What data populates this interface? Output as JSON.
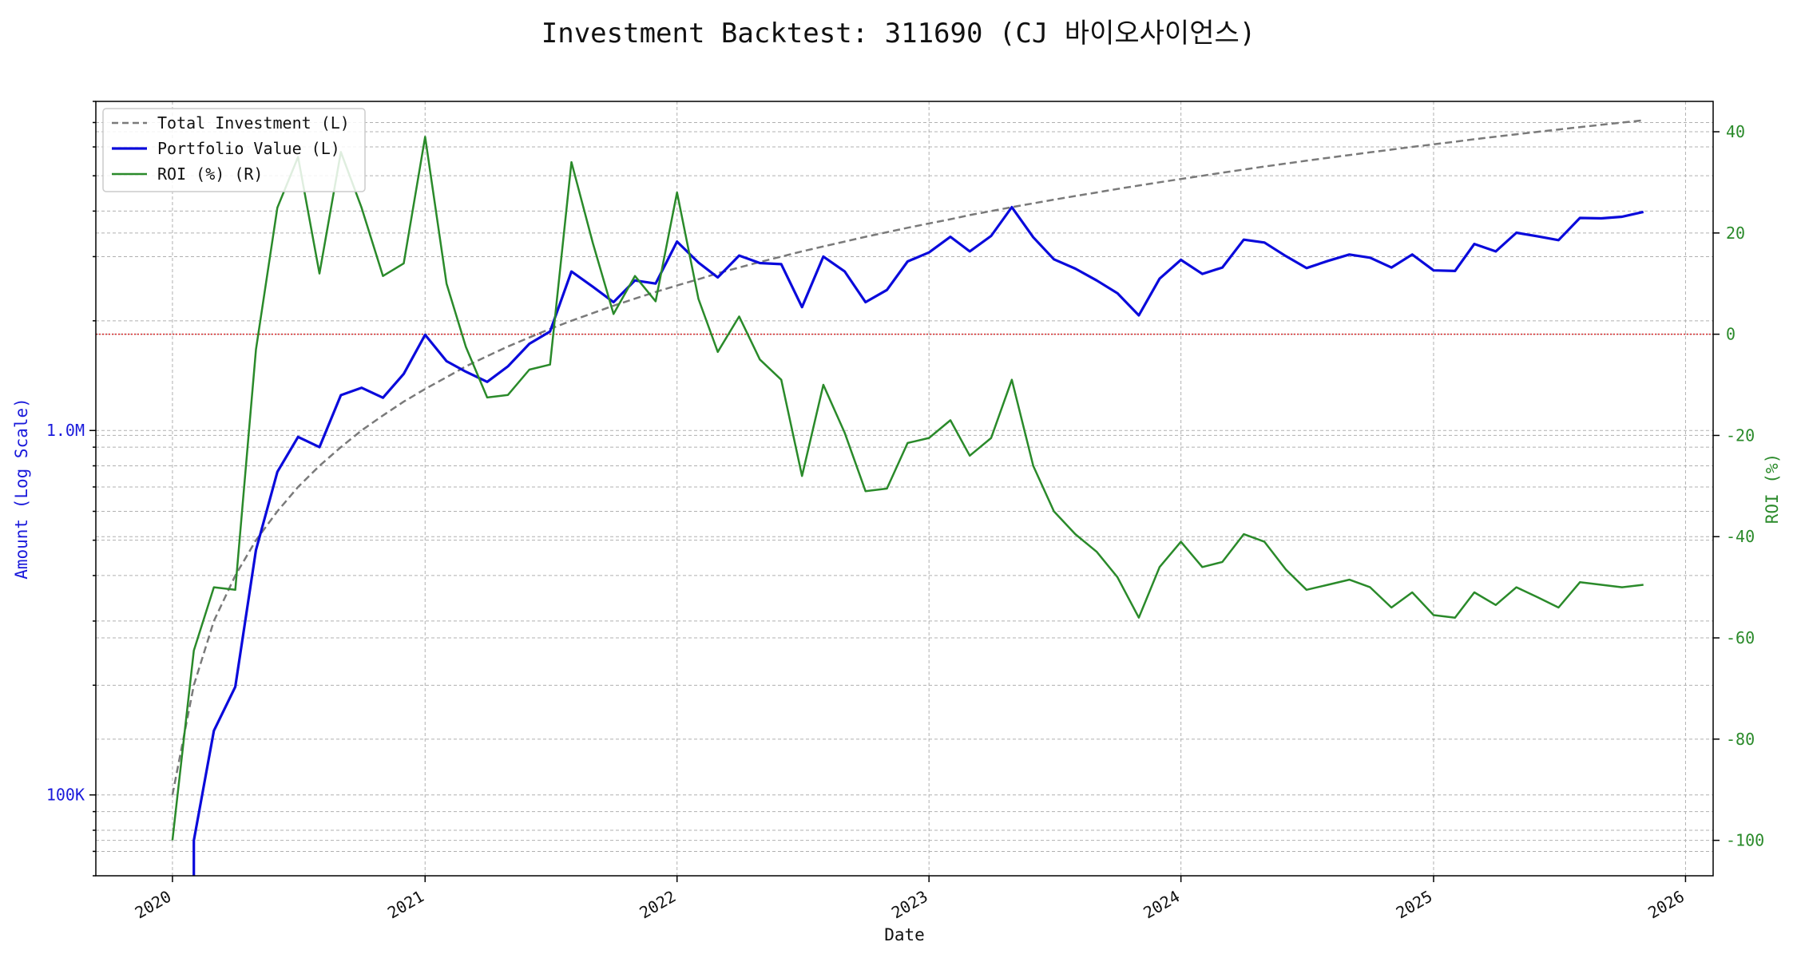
{
  "chart_data": {
    "type": "line",
    "title": "Investment Backtest: 311690 (CJ 바이오사이언스)",
    "xlabel": "Date",
    "ylabel_left": "Amount (Log Scale)",
    "ylabel_right": "ROI (%)",
    "left_axis": {
      "scale": "log",
      "ylim": [
        60000,
        8000000
      ],
      "ticks": [
        100000,
        1000000
      ],
      "tick_labels": [
        "100K",
        "1.0M"
      ],
      "color": "#1a1adb"
    },
    "right_axis": {
      "ylim": [
        -107,
        46
      ],
      "ticks": [
        -100,
        -80,
        -60,
        -40,
        -20,
        0,
        20,
        40
      ],
      "color": "#2a8a2a"
    },
    "x_ticks": [
      "2020",
      "2021",
      "2022",
      "2023",
      "2024",
      "2025",
      "2026"
    ],
    "xlim": [
      "2019-09-12",
      "2026-02-10"
    ],
    "grid": true,
    "legend_position": "top-left",
    "reference_line": {
      "axis": "right",
      "value": 0,
      "color": "#d62728",
      "style": "dotted"
    },
    "series": [
      {
        "name": "Total Investment (L)",
        "axis": "left",
        "color": "#7a7a7a",
        "style": "dashed",
        "x": [
          "2020-01-01",
          "2020-02-01",
          "2020-03-01",
          "2020-04-01",
          "2020-05-01",
          "2020-06-01",
          "2020-07-01",
          "2020-08-01",
          "2020-09-01",
          "2020-10-01",
          "2020-11-01",
          "2020-12-01",
          "2021-01-01",
          "2021-02-01",
          "2021-03-01",
          "2021-04-01",
          "2021-05-01",
          "2021-06-01",
          "2021-07-01",
          "2021-08-01",
          "2021-09-01",
          "2021-10-01",
          "2021-11-01",
          "2021-12-01",
          "2022-01-01",
          "2022-02-01",
          "2022-03-01",
          "2022-04-01",
          "2022-05-01",
          "2022-06-01",
          "2022-07-01",
          "2022-08-01",
          "2022-09-01",
          "2022-10-01",
          "2022-11-01",
          "2022-12-01",
          "2023-01-01",
          "2023-02-01",
          "2023-03-01",
          "2023-04-01",
          "2023-05-01",
          "2023-06-01",
          "2023-07-01",
          "2023-08-01",
          "2023-09-01",
          "2023-10-01",
          "2023-11-01",
          "2023-12-01",
          "2024-01-01",
          "2024-02-01",
          "2024-03-01",
          "2024-04-01",
          "2024-05-01",
          "2024-06-01",
          "2024-07-01",
          "2024-08-01",
          "2024-09-01",
          "2024-10-01",
          "2024-11-01",
          "2024-12-01",
          "2025-01-01",
          "2025-02-01",
          "2025-03-01",
          "2025-04-01",
          "2025-05-01",
          "2025-06-01",
          "2025-07-01",
          "2025-08-01",
          "2025-09-01",
          "2025-10-01",
          "2025-11-01"
        ],
        "values": [
          100000,
          200000,
          300000,
          400000,
          500000,
          600000,
          700000,
          800000,
          900000,
          1000000,
          1100000,
          1200000,
          1300000,
          1400000,
          1500000,
          1600000,
          1700000,
          1800000,
          1900000,
          2000000,
          2100000,
          2200000,
          2300000,
          2400000,
          2500000,
          2600000,
          2700000,
          2800000,
          2900000,
          3000000,
          3100000,
          3200000,
          3300000,
          3400000,
          3500000,
          3600000,
          3700000,
          3800000,
          3900000,
          4000000,
          4100000,
          4200000,
          4300000,
          4400000,
          4500000,
          4600000,
          4700000,
          4800000,
          4900000,
          5000000,
          5100000,
          5200000,
          5300000,
          5400000,
          5500000,
          5600000,
          5700000,
          5800000,
          5900000,
          6000000,
          6100000,
          6200000,
          6300000,
          6400000,
          6500000,
          6600000,
          6700000,
          6800000,
          6900000,
          7000000,
          7100000
        ]
      },
      {
        "name": "Portfolio Value (L)",
        "axis": "left",
        "color": "#0a0adb",
        "style": "solid",
        "x": [
          "2020-01-01",
          "2020-02-01",
          "2020-03-01",
          "2020-04-01",
          "2020-05-01",
          "2020-06-01",
          "2020-07-01",
          "2020-08-01",
          "2020-09-01",
          "2020-10-01",
          "2020-11-01",
          "2020-12-01",
          "2021-01-01",
          "2021-02-01",
          "2021-03-01",
          "2021-04-01",
          "2021-05-01",
          "2021-06-01",
          "2021-07-01",
          "2021-08-01",
          "2021-09-01",
          "2021-10-01",
          "2021-11-01",
          "2021-12-01",
          "2022-01-01",
          "2022-02-01",
          "2022-03-01",
          "2022-04-01",
          "2022-05-01",
          "2022-06-01",
          "2022-07-01",
          "2022-08-01",
          "2022-09-01",
          "2022-10-01",
          "2022-11-01",
          "2022-12-01",
          "2023-01-01",
          "2023-02-01",
          "2023-03-01",
          "2023-04-01",
          "2023-05-01",
          "2023-06-01",
          "2023-07-01",
          "2023-08-01",
          "2023-09-01",
          "2023-10-01",
          "2023-11-01",
          "2023-12-01",
          "2024-01-01",
          "2024-02-01",
          "2024-03-01",
          "2024-04-01",
          "2024-05-01",
          "2024-06-01",
          "2024-07-01",
          "2024-08-01",
          "2024-09-01",
          "2024-10-01",
          "2024-11-01",
          "2024-12-01",
          "2025-01-01",
          "2025-02-01",
          "2025-03-01",
          "2025-04-01",
          "2025-05-01",
          "2025-06-01",
          "2025-07-01",
          "2025-08-01",
          "2025-09-01",
          "2025-10-01",
          "2025-11-01"
        ],
        "values": [
          null,
          75000,
          150000,
          198000,
          470000,
          770000,
          960000,
          900000,
          1250000,
          1310000,
          1230000,
          1430000,
          1830000,
          1550000,
          1450000,
          1360000,
          1500000,
          1730000,
          1870000,
          2730000,
          2480000,
          2250000,
          2580000,
          2530000,
          3300000,
          2890000,
          2630000,
          3020000,
          2880000,
          2860000,
          2180000,
          3000000,
          2730000,
          2250000,
          2430000,
          2910000,
          3080000,
          3400000,
          3100000,
          3420000,
          4100000,
          3390000,
          2950000,
          2780000,
          2580000,
          2380000,
          2070000,
          2610000,
          2940000,
          2690000,
          2800000,
          3340000,
          3280000,
          3010000,
          2790000,
          2920000,
          3040000,
          2980000,
          2800000,
          3040000,
          2750000,
          2740000,
          3250000,
          3100000,
          3490000,
          3410000,
          3330000,
          3830000,
          3820000,
          3860000,
          3980000
        ]
      },
      {
        "name": "ROI (%) (R)",
        "axis": "right",
        "color": "#2a8a2a",
        "style": "solid",
        "x": [
          "2020-01-01",
          "2020-02-01",
          "2020-03-01",
          "2020-04-01",
          "2020-05-01",
          "2020-06-01",
          "2020-07-01",
          "2020-08-01",
          "2020-09-01",
          "2020-10-01",
          "2020-11-01",
          "2020-12-01",
          "2021-01-01",
          "2021-02-01",
          "2021-03-01",
          "2021-04-01",
          "2021-05-01",
          "2021-06-01",
          "2021-07-01",
          "2021-08-01",
          "2021-09-01",
          "2021-10-01",
          "2021-11-01",
          "2021-12-01",
          "2022-01-01",
          "2022-02-01",
          "2022-03-01",
          "2022-04-01",
          "2022-05-01",
          "2022-06-01",
          "2022-07-01",
          "2022-08-01",
          "2022-09-01",
          "2022-10-01",
          "2022-11-01",
          "2022-12-01",
          "2023-01-01",
          "2023-02-01",
          "2023-03-01",
          "2023-04-01",
          "2023-05-01",
          "2023-06-01",
          "2023-07-01",
          "2023-08-01",
          "2023-09-01",
          "2023-10-01",
          "2023-11-01",
          "2023-12-01",
          "2024-01-01",
          "2024-02-01",
          "2024-03-01",
          "2024-04-01",
          "2024-05-01",
          "2024-06-01",
          "2024-07-01",
          "2024-08-01",
          "2024-09-01",
          "2024-10-01",
          "2024-11-01",
          "2024-12-01",
          "2025-01-01",
          "2025-02-01",
          "2025-03-01",
          "2025-04-01",
          "2025-05-01",
          "2025-06-01",
          "2025-07-01",
          "2025-08-01",
          "2025-09-01",
          "2025-10-01",
          "2025-11-01"
        ],
        "values": [
          -100,
          -62.5,
          -50,
          -50.5,
          -3,
          25,
          35,
          12,
          36,
          25,
          11.5,
          14,
          39,
          10,
          -2.5,
          -12.5,
          -12,
          -7,
          -6,
          34,
          18,
          4,
          11.5,
          6.5,
          28,
          7,
          -3.5,
          3.5,
          -5,
          -9,
          -28,
          -10,
          -19.5,
          -31,
          -30.5,
          -21.5,
          -20.5,
          -17,
          -24,
          -20.5,
          -9,
          -26,
          -35,
          -39.5,
          -43,
          -48,
          -56,
          -46,
          -41,
          -46,
          -45,
          -39.5,
          -41,
          -46.5,
          -50.5,
          -49.5,
          -48.5,
          -50,
          -54,
          -51,
          -55.5,
          -56,
          -51,
          -53.5,
          -50,
          -52,
          -54,
          -49,
          -49.5,
          -50,
          -49.5
        ]
      }
    ]
  }
}
